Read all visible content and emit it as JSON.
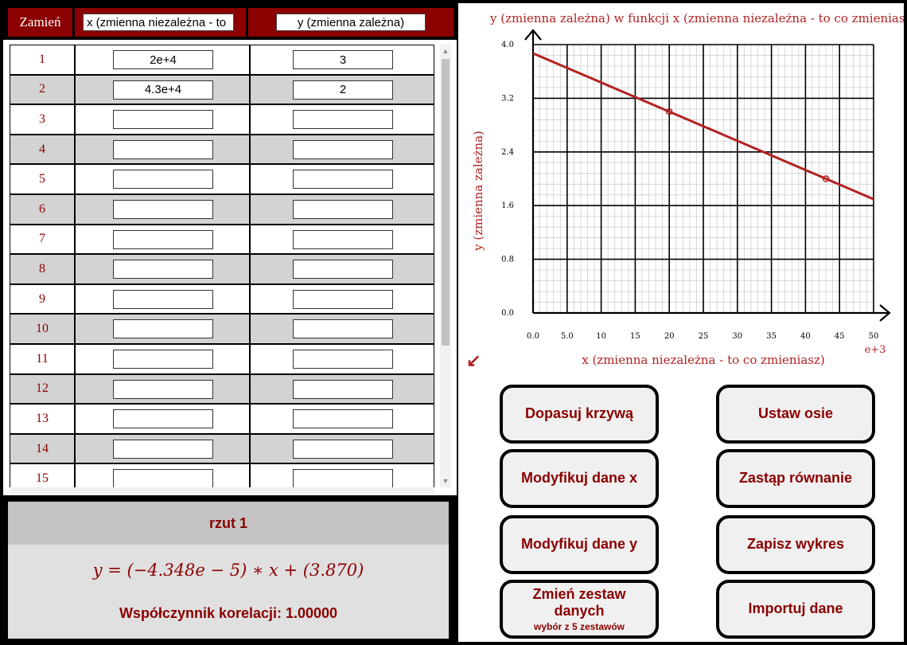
{
  "table": {
    "swap_label": "Zamień",
    "x_header": "x (zmienna niezależna - to co zmieniasz)",
    "y_header": "y (zmienna zależna)",
    "rows": [
      {
        "num": "1",
        "x": "2e+4",
        "y": "3"
      },
      {
        "num": "2",
        "x": "4.3e+4",
        "y": "2"
      },
      {
        "num": "3",
        "x": "",
        "y": ""
      },
      {
        "num": "4",
        "x": "",
        "y": ""
      },
      {
        "num": "5",
        "x": "",
        "y": ""
      },
      {
        "num": "6",
        "x": "",
        "y": ""
      },
      {
        "num": "7",
        "x": "",
        "y": ""
      },
      {
        "num": "8",
        "x": "",
        "y": ""
      },
      {
        "num": "9",
        "x": "",
        "y": ""
      },
      {
        "num": "10",
        "x": "",
        "y": ""
      },
      {
        "num": "11",
        "x": "",
        "y": ""
      },
      {
        "num": "12",
        "x": "",
        "y": ""
      },
      {
        "num": "13",
        "x": "",
        "y": ""
      },
      {
        "num": "14",
        "x": "",
        "y": ""
      },
      {
        "num": "15",
        "x": "",
        "y": ""
      }
    ]
  },
  "result": {
    "title": "rzut 1",
    "equation": "y = (−4.348e − 5) ∗ x + (3.870)",
    "correlation": "Współczynnik korelacji: 1.00000"
  },
  "chart_data": {
    "type": "scatter",
    "title": "y (zmienna zależna) w funkcji x (zmienna niezależna - to co zmieniasz)",
    "xlabel": "x (zmienna niezależna - to co zmieniasz)",
    "ylabel": "y (zmienna zależna)",
    "x_multiplier_label": "e+3",
    "x_ticks": [
      "0.0",
      "5.0",
      "10",
      "15",
      "20",
      "25",
      "30",
      "35",
      "40",
      "45",
      "50"
    ],
    "y_ticks": [
      "0.0",
      "0.8",
      "1.6",
      "2.4",
      "3.2",
      "4.0"
    ],
    "xlim": [
      0,
      50000
    ],
    "ylim": [
      0,
      4.0
    ],
    "grid": true,
    "points": [
      {
        "x": 20000,
        "y": 3
      },
      {
        "x": 43000,
        "y": 2
      }
    ],
    "fit": {
      "slope": -4.348e-05,
      "intercept": 3.87
    },
    "colors": {
      "line": "#b22222",
      "text": "#b22222"
    }
  },
  "buttons": {
    "fit_curve": "Dopasuj krzywą",
    "set_axes": "Ustaw osie",
    "modify_x": "Modyfikuj dane x",
    "replace_equation": "Zastąp równanie",
    "modify_y": "Modyfikuj dane y",
    "save_chart": "Zapisz wykres",
    "change_dataset": "Zmień zestaw danych",
    "change_dataset_sub": "wybór z 5 zestawów",
    "import_data": "Importuj dane"
  }
}
